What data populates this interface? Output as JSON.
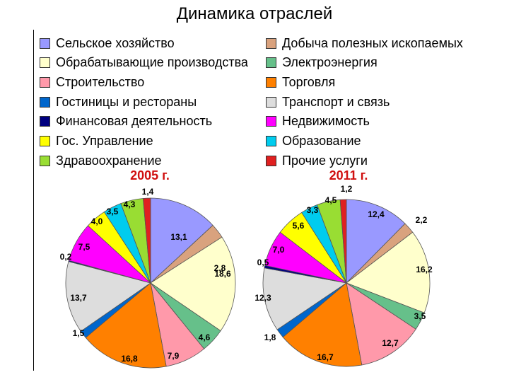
{
  "title": "Динамика отраслей",
  "legend": [
    {
      "label": "Сельское хозяйство",
      "color": "#9999ff"
    },
    {
      "label": "Добыча полезных ископаемых",
      "color": "#d9a27e"
    },
    {
      "label": "Обрабатывающие производства",
      "color": "#ffffcc"
    },
    {
      "label": "Электроэнергия",
      "color": "#66c08a"
    },
    {
      "label": "Строительство",
      "color": "#ff99aa"
    },
    {
      "label": "Торговля",
      "color": "#ff8000"
    },
    {
      "label": "Гостиницы и рестораны",
      "color": "#0066cc"
    },
    {
      "label": "Транспорт и связь",
      "color": "#dddddd"
    },
    {
      "label": "Финансовая деятельность",
      "color": "#000080"
    },
    {
      "label": "Недвижимость",
      "color": "#ff00ff"
    },
    {
      "label": "Гос. Управление",
      "color": "#ffff00"
    },
    {
      "label": "Образование",
      "color": "#00ccee"
    },
    {
      "label": "Здравоохранение",
      "color": "#99dd33"
    },
    {
      "label": "Прочие услуги",
      "color": "#e02020"
    }
  ],
  "chart_data": [
    {
      "type": "pie",
      "title": "2005 г.",
      "categories": [
        "Сельское хозяйство",
        "Добыча полезных ископаемых",
        "Обрабатывающие производства",
        "Электроэнергия",
        "Строительство",
        "Торговля",
        "Гостиницы и рестораны",
        "Транспорт и связь",
        "Финансовая деятельность",
        "Недвижимость",
        "Гос. Управление",
        "Образование",
        "Здравоохранение",
        "Прочие услуги"
      ],
      "values": [
        13.1,
        2.8,
        18.6,
        4.6,
        7.9,
        16.8,
        1.5,
        13.7,
        0.2,
        7.5,
        4.0,
        3.5,
        4.3,
        1.4
      ],
      "labels": [
        "13,1",
        "2,8",
        "18,6",
        "4,6",
        "7,9",
        "16,8",
        "1,5",
        "13,7",
        "0,2",
        "7,5",
        "4,0",
        "3,5",
        "4,3",
        "1,4"
      ]
    },
    {
      "type": "pie",
      "title": "2011 г.",
      "categories": [
        "Сельское хозяйство",
        "Добыча полезных ископаемых",
        "Обрабатывающие производства",
        "Электроэнергия",
        "Строительство",
        "Торговля",
        "Гостиницы и рестораны",
        "Транспорт и связь",
        "Финансовая деятельность",
        "Недвижимость",
        "Гос. Управление",
        "Образование",
        "Здравоохранение",
        "Прочие услуги"
      ],
      "values": [
        12.4,
        2.2,
        16.2,
        3.5,
        12.7,
        16.7,
        1.8,
        12.3,
        0.5,
        7.0,
        5.6,
        3.3,
        4.5,
        1.2
      ],
      "labels": [
        "12,4",
        "2,2",
        "16,2",
        "3,5",
        "12,7",
        "16,7",
        "1,8",
        "12,3",
        "0,5",
        "7,0",
        "5,6",
        "3,3",
        "4,5",
        "1,2"
      ]
    }
  ]
}
